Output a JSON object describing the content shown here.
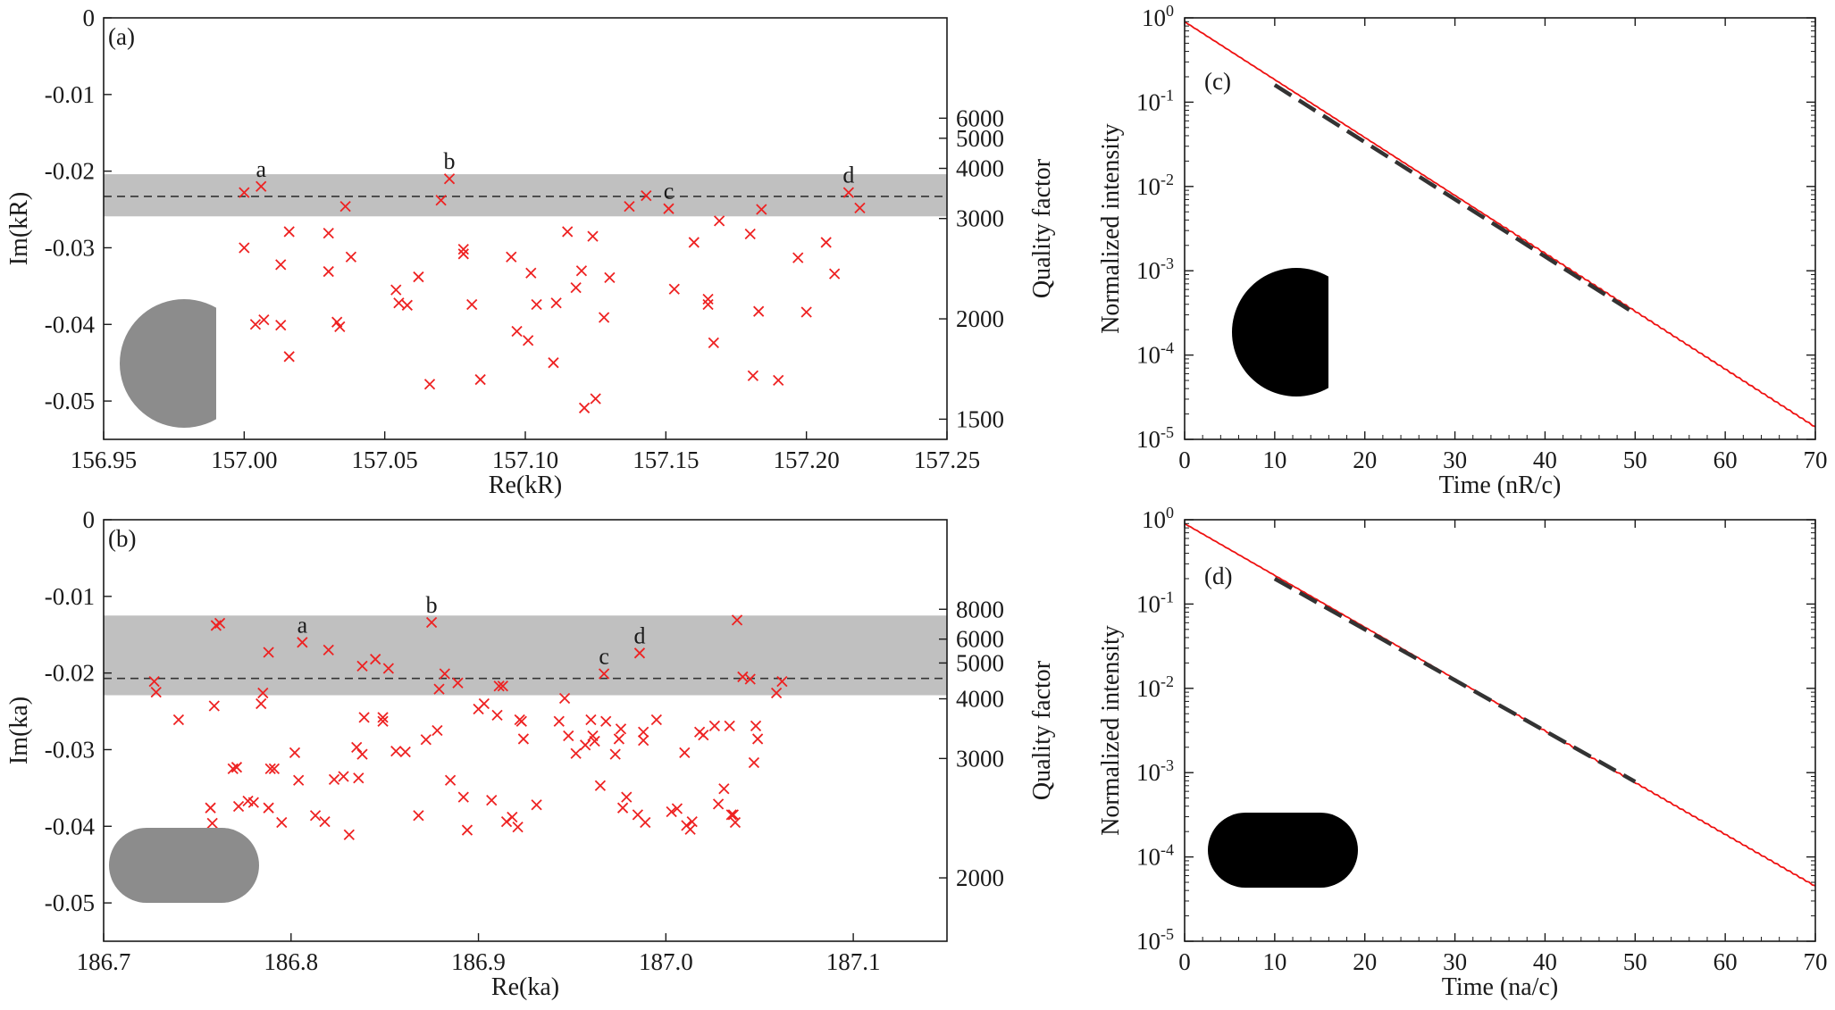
{
  "chart_data": [
    {
      "id": "a",
      "type": "scatter",
      "panel_label": "(a)",
      "xlabel": "Re(kR)",
      "ylabel": "Im(kR)",
      "y2label": "Quality factor",
      "xlim": [
        156.95,
        157.25
      ],
      "ylim": [
        -0.055,
        0
      ],
      "xticks": [
        156.95,
        157.0,
        157.05,
        157.1,
        157.15,
        157.2,
        157.25
      ],
      "xtick_labels": [
        "156.95",
        "157.00",
        "157.05",
        "157.10",
        "157.15",
        "157.20",
        "157.25"
      ],
      "yticks": [
        0,
        -0.01,
        -0.02,
        -0.03,
        -0.04,
        -0.05
      ],
      "ytick_labels": [
        "0",
        "-0.01",
        "-0.02",
        "-0.03",
        "-0.04",
        "-0.05"
      ],
      "q_ticks": [
        1500,
        2000,
        3000,
        4000,
        5000,
        6000
      ],
      "q_tick_labels": [
        "1500",
        "2000",
        "3000",
        "4000",
        "5000",
        "6000"
      ],
      "q_relation": "Q = Re / (2 |Im|)",
      "band": [
        -0.0259,
        -0.0204
      ],
      "dashed_y": -0.0233,
      "inset": "half-disk (cut flat on right)",
      "marker_color": "#ee2222",
      "band_color": "#c0c0c0",
      "inset_color": "#8c8c8c",
      "points": [
        [
          157.0,
          -0.0228
        ],
        [
          157.006,
          -0.022
        ],
        [
          157.0,
          -0.03
        ],
        [
          157.004,
          -0.04
        ],
        [
          157.007,
          -0.0394
        ],
        [
          157.013,
          -0.0401
        ],
        [
          157.013,
          -0.0322
        ],
        [
          157.016,
          -0.0279
        ],
        [
          157.016,
          -0.0442
        ],
        [
          157.03,
          -0.0281
        ],
        [
          157.03,
          -0.0331
        ],
        [
          157.033,
          -0.0397
        ],
        [
          157.034,
          -0.0403
        ],
        [
          157.036,
          -0.0246
        ],
        [
          157.038,
          -0.0312
        ],
        [
          157.054,
          -0.0355
        ],
        [
          157.055,
          -0.0372
        ],
        [
          157.058,
          -0.0375
        ],
        [
          157.062,
          -0.0338
        ],
        [
          157.066,
          -0.0478
        ],
        [
          157.07,
          -0.0238
        ],
        [
          157.073,
          -0.021
        ],
        [
          157.078,
          -0.0302
        ],
        [
          157.078,
          -0.0308
        ],
        [
          157.081,
          -0.0374
        ],
        [
          157.084,
          -0.0472
        ],
        [
          157.095,
          -0.0312
        ],
        [
          157.097,
          -0.0409
        ],
        [
          157.101,
          -0.0421
        ],
        [
          157.102,
          -0.0333
        ],
        [
          157.104,
          -0.0374
        ],
        [
          157.11,
          -0.045
        ],
        [
          157.111,
          -0.0372
        ],
        [
          157.115,
          -0.0279
        ],
        [
          157.118,
          -0.0352
        ],
        [
          157.12,
          -0.033
        ],
        [
          157.121,
          -0.0509
        ],
        [
          157.124,
          -0.0285
        ],
        [
          157.125,
          -0.0497
        ],
        [
          157.128,
          -0.0391
        ],
        [
          157.13,
          -0.0339
        ],
        [
          157.137,
          -0.0246
        ],
        [
          157.143,
          -0.0232
        ],
        [
          157.151,
          -0.0249
        ],
        [
          157.153,
          -0.0354
        ],
        [
          157.16,
          -0.0293
        ],
        [
          157.165,
          -0.0367
        ],
        [
          157.165,
          -0.0374
        ],
        [
          157.167,
          -0.0424
        ],
        [
          157.169,
          -0.0265
        ],
        [
          157.18,
          -0.0282
        ],
        [
          157.181,
          -0.0467
        ],
        [
          157.183,
          -0.0383
        ],
        [
          157.184,
          -0.025
        ],
        [
          157.19,
          -0.0473
        ],
        [
          157.197,
          -0.0313
        ],
        [
          157.2,
          -0.0384
        ],
        [
          157.207,
          -0.0293
        ],
        [
          157.21,
          -0.0334
        ],
        [
          157.215,
          -0.0228
        ],
        [
          157.219,
          -0.0248
        ]
      ],
      "annotations": [
        {
          "text": "a",
          "x": 157.006,
          "y": -0.022
        },
        {
          "text": "b",
          "x": 157.073,
          "y": -0.021
        },
        {
          "text": "c",
          "x": 157.151,
          "y": -0.0249
        },
        {
          "text": "d",
          "x": 157.215,
          "y": -0.0228
        }
      ]
    },
    {
      "id": "b",
      "type": "scatter",
      "panel_label": "(b)",
      "xlabel": "Re(ka)",
      "ylabel": "Im(ka)",
      "y2label": "Quality factor",
      "xlim": [
        186.7,
        187.15
      ],
      "ylim": [
        -0.055,
        0
      ],
      "xticks": [
        186.7,
        186.8,
        186.9,
        187.0,
        187.1
      ],
      "xtick_labels": [
        "186.7",
        "186.8",
        "186.9",
        "187.0",
        "187.1"
      ],
      "yticks": [
        0,
        -0.01,
        -0.02,
        -0.03,
        -0.04,
        -0.05
      ],
      "ytick_labels": [
        "0",
        "-0.01",
        "-0.02",
        "-0.03",
        "-0.04",
        "-0.05"
      ],
      "q_ticks": [
        2000,
        3000,
        4000,
        5000,
        6000,
        8000
      ],
      "q_tick_labels": [
        "2000",
        "3000",
        "4000",
        "5000",
        "6000",
        "8000"
      ],
      "q_relation": "Q = Re / (2 |Im|)",
      "band": [
        -0.0229,
        -0.0125
      ],
      "dashed_y": -0.0207,
      "inset": "stadium",
      "marker_color": "#ee2222",
      "band_color": "#c0c0c0",
      "inset_color": "#8c8c8c",
      "points": [
        [
          186.727,
          -0.0211
        ],
        [
          186.728,
          -0.0225
        ],
        [
          186.74,
          -0.0261
        ],
        [
          186.757,
          -0.0376
        ],
        [
          186.758,
          -0.0396
        ],
        [
          186.759,
          -0.0243
        ],
        [
          186.76,
          -0.0138
        ],
        [
          186.762,
          -0.0135
        ],
        [
          186.769,
          -0.0325
        ],
        [
          186.771,
          -0.0323
        ],
        [
          186.772,
          -0.0374
        ],
        [
          186.777,
          -0.0367
        ],
        [
          186.78,
          -0.0369
        ],
        [
          186.784,
          -0.024
        ],
        [
          186.785,
          -0.0226
        ],
        [
          186.788,
          -0.0173
        ],
        [
          186.788,
          -0.0376
        ],
        [
          186.789,
          -0.0325
        ],
        [
          186.791,
          -0.0325
        ],
        [
          186.795,
          -0.0395
        ],
        [
          186.802,
          -0.0304
        ],
        [
          186.804,
          -0.034
        ],
        [
          186.806,
          -0.016
        ],
        [
          186.813,
          -0.0386
        ],
        [
          186.818,
          -0.0394
        ],
        [
          186.82,
          -0.017
        ],
        [
          186.823,
          -0.0339
        ],
        [
          186.828,
          -0.0335
        ],
        [
          186.831,
          -0.0411
        ],
        [
          186.835,
          -0.0297
        ],
        [
          186.836,
          -0.0337
        ],
        [
          186.838,
          -0.0191
        ],
        [
          186.838,
          -0.0306
        ],
        [
          186.839,
          -0.0258
        ],
        [
          186.845,
          -0.0182
        ],
        [
          186.849,
          -0.0258
        ],
        [
          186.849,
          -0.0263
        ],
        [
          186.852,
          -0.0194
        ],
        [
          186.856,
          -0.0302
        ],
        [
          186.861,
          -0.0303
        ],
        [
          186.868,
          -0.0386
        ],
        [
          186.872,
          -0.0287
        ],
        [
          186.875,
          -0.0134
        ],
        [
          186.878,
          -0.0275
        ],
        [
          186.879,
          -0.0221
        ],
        [
          186.882,
          -0.0201
        ],
        [
          186.885,
          -0.034
        ],
        [
          186.889,
          -0.0213
        ],
        [
          186.892,
          -0.0362
        ],
        [
          186.894,
          -0.0405
        ],
        [
          186.9,
          -0.0247
        ],
        [
          186.903,
          -0.024
        ],
        [
          186.907,
          -0.0366
        ],
        [
          186.91,
          -0.0255
        ],
        [
          186.911,
          -0.0217
        ],
        [
          186.913,
          -0.0217
        ],
        [
          186.915,
          -0.0394
        ],
        [
          186.918,
          -0.0388
        ],
        [
          186.921,
          -0.0401
        ],
        [
          186.922,
          -0.0261
        ],
        [
          186.924,
          -0.0286
        ],
        [
          186.923,
          -0.0263
        ],
        [
          186.931,
          -0.0372
        ],
        [
          186.943,
          -0.0263
        ],
        [
          186.946,
          -0.0233
        ],
        [
          186.948,
          -0.0282
        ],
        [
          186.952,
          -0.0305
        ],
        [
          186.957,
          -0.0294
        ],
        [
          186.96,
          -0.0261
        ],
        [
          186.961,
          -0.0282
        ],
        [
          186.962,
          -0.0289
        ],
        [
          186.965,
          -0.0347
        ],
        [
          186.967,
          -0.0201
        ],
        [
          186.968,
          -0.0263
        ],
        [
          186.973,
          -0.0306
        ],
        [
          186.975,
          -0.0286
        ],
        [
          186.976,
          -0.0273
        ],
        [
          186.977,
          -0.0376
        ],
        [
          186.979,
          -0.0362
        ],
        [
          186.985,
          -0.0385
        ],
        [
          186.986,
          -0.0174
        ],
        [
          186.988,
          -0.0288
        ],
        [
          186.988,
          -0.0277
        ],
        [
          186.989,
          -0.0395
        ],
        [
          186.995,
          -0.0261
        ],
        [
          187.003,
          -0.0381
        ],
        [
          187.006,
          -0.0377
        ],
        [
          187.01,
          -0.0304
        ],
        [
          187.011,
          -0.0399
        ],
        [
          187.013,
          -0.0404
        ],
        [
          187.014,
          -0.0394
        ],
        [
          187.018,
          -0.0277
        ],
        [
          187.02,
          -0.0281
        ],
        [
          187.026,
          -0.0269
        ],
        [
          187.028,
          -0.0371
        ],
        [
          187.031,
          -0.0351
        ],
        [
          187.034,
          -0.0269
        ],
        [
          187.035,
          -0.0385
        ],
        [
          187.036,
          -0.0385
        ],
        [
          187.037,
          -0.0395
        ],
        [
          187.038,
          -0.0131
        ],
        [
          187.041,
          -0.0205
        ],
        [
          187.045,
          -0.0208
        ],
        [
          187.047,
          -0.0317
        ],
        [
          187.048,
          -0.0269
        ],
        [
          187.049,
          -0.0286
        ],
        [
          187.059,
          -0.0226
        ],
        [
          187.062,
          -0.0211
        ]
      ],
      "annotations": [
        {
          "text": "a",
          "x": 186.806,
          "y": -0.016
        },
        {
          "text": "b",
          "x": 186.875,
          "y": -0.0134
        },
        {
          "text": "c",
          "x": 186.967,
          "y": -0.0201
        },
        {
          "text": "d",
          "x": 186.986,
          "y": -0.0174
        }
      ]
    },
    {
      "id": "c",
      "type": "line",
      "y_scale": "log",
      "panel_label": "(c)",
      "xlabel": "Time (nR/c)",
      "ylabel": "Normalized intensity",
      "xlim": [
        0,
        70
      ],
      "ylim": [
        1e-05,
        1
      ],
      "xticks": [
        0,
        10,
        20,
        30,
        40,
        50,
        60,
        70
      ],
      "xtick_labels": [
        "0",
        "10",
        "20",
        "30",
        "40",
        "50",
        "60",
        "70"
      ],
      "yticks": [
        1,
        0.1,
        0.01,
        0.001,
        0.0001,
        1e-05
      ],
      "ytick_bases": [
        "10",
        "10",
        "10",
        "10",
        "10",
        "10"
      ],
      "ytick_exps": [
        "0",
        "-1",
        "-2",
        "-3",
        "-4",
        "-5"
      ],
      "inset": "half-disk (cut flat on right)",
      "line_color": "#ee1111",
      "fit_color": "#333333",
      "series": [
        {
          "style": "solid",
          "x": [
            0,
            70
          ],
          "y": [
            0.9,
            1.4e-05
          ]
        },
        {
          "style": "dashed",
          "x": [
            10,
            50
          ],
          "y": [
            0.16,
            0.00031
          ]
        }
      ]
    },
    {
      "id": "d",
      "type": "line",
      "y_scale": "log",
      "panel_label": "(d)",
      "xlabel": "Time (na/c)",
      "ylabel": "Normalized intensity",
      "xlim": [
        0,
        70
      ],
      "ylim": [
        1e-05,
        1
      ],
      "xticks": [
        0,
        10,
        20,
        30,
        40,
        50,
        60,
        70
      ],
      "xtick_labels": [
        "0",
        "10",
        "20",
        "30",
        "40",
        "50",
        "60",
        "70"
      ],
      "yticks": [
        1,
        0.1,
        0.01,
        0.001,
        0.0001,
        1e-05
      ],
      "ytick_bases": [
        "10",
        "10",
        "10",
        "10",
        "10",
        "10"
      ],
      "ytick_exps": [
        "0",
        "-1",
        "-2",
        "-3",
        "-4",
        "-5"
      ],
      "inset": "stadium",
      "line_color": "#ee1111",
      "fit_color": "#333333",
      "series": [
        {
          "style": "solid",
          "x": [
            0,
            70
          ],
          "y": [
            0.9,
            4.5e-05
          ]
        },
        {
          "style": "dashed",
          "x": [
            10,
            50
          ],
          "y": [
            0.2,
            0.00078
          ]
        }
      ]
    }
  ]
}
